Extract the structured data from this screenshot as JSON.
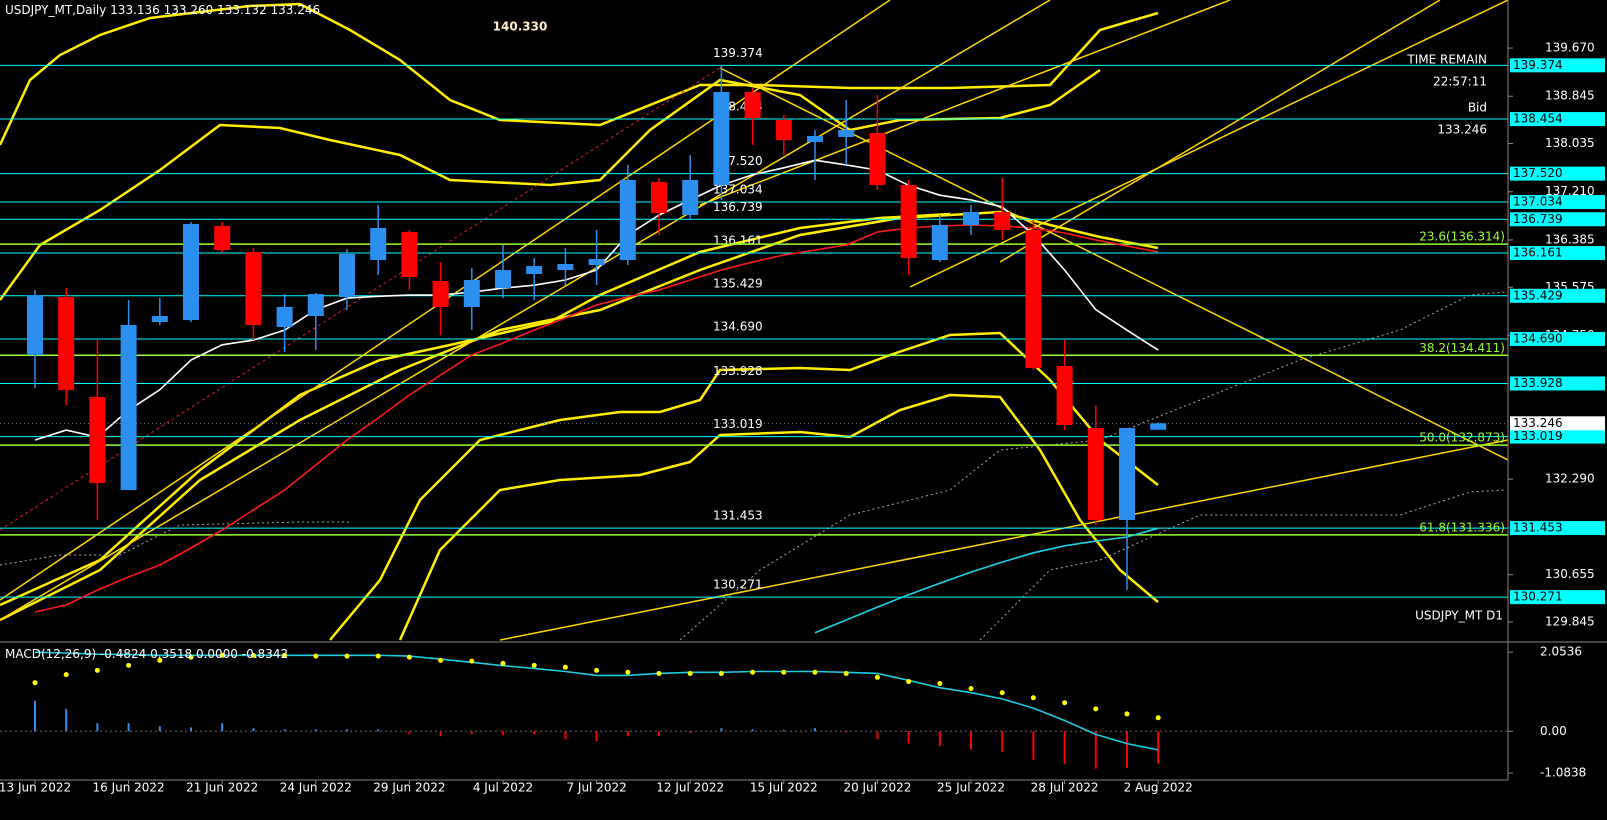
{
  "chart_data": {
    "type": "candlestick",
    "title": "USDJPY_MT,Daily",
    "readout": [
      133.136,
      {
        "value": 133.26,
        "label": "133.260"
      },
      133.132,
      133.246
    ],
    "symbol_label": "USDJPY_MT D1",
    "annotations": {
      "high_label": "140.330",
      "time_remain": "TIME REMAIN",
      "time": "22:57:11",
      "bid": "Bid"
    },
    "categories": [
      "13 Jun 2022",
      null,
      null,
      "16 Jun 2022",
      null,
      null,
      "21 Jun 2022",
      null,
      null,
      "24 Jun 2022",
      null,
      null,
      "29 Jun 2022",
      null,
      null,
      "4 Jul 2022",
      null,
      null,
      "7 Jul 2022",
      null,
      null,
      "12 Jul 2022",
      null,
      null,
      "15 Jul 2022",
      null,
      null,
      "20 Jul 2022",
      null,
      null,
      "25 Jul 2022",
      null,
      null,
      "28 Jul 2022",
      null,
      null,
      "2 Aug 2022"
    ],
    "open": [
      134.415,
      135.408,
      133.696,
      132.104,
      134.98,
      135.014,
      136.623,
      136.178,
      134.894,
      135.083,
      135.408,
      136.041,
      136.52,
      135.682,
      135.237,
      135.562,
      135.801,
      135.87,
      135.955,
      136.041,
      137.376,
      136.811,
      137.325,
      138.917,
      138.438,
      138.061,
      138.147,
      138.215,
      137.325,
      136.041,
      136.64,
      136.863,
      136.555,
      134.227,
      133.165,
      131.591,
      133.136
    ],
    "high": [
      135.528,
      135.562,
      134.672,
      135.357,
      135.391,
      136.692,
      136.692,
      136.247,
      135.459,
      135.476,
      136.229,
      136.983,
      136.555,
      136.007,
      135.904,
      136.298,
      136.075,
      136.247,
      136.555,
      137.667,
      137.445,
      137.838,
      139.374,
      138.985,
      138.523,
      138.266,
      138.78,
      138.865,
      137.411,
      136.811,
      136.983,
      137.445,
      136.726,
      134.672,
      133.559,
      133.165,
      133.26
    ],
    "low": [
      133.85,
      133.559,
      131.591,
      132.104,
      134.929,
      134.98,
      136.178,
      134.672,
      134.467,
      134.501,
      135.185,
      135.784,
      135.528,
      134.757,
      134.843,
      135.391,
      135.357,
      135.613,
      135.613,
      135.955,
      136.469,
      136.726,
      137.068,
      138.01,
      137.838,
      137.411,
      137.667,
      137.239,
      135.784,
      136.007,
      136.469,
      136.384,
      134.158,
      133.131,
      131.505,
      130.392,
      133.132
    ],
    "close": [
      135.442,
      133.816,
      132.224,
      134.929,
      135.083,
      136.657,
      136.212,
      134.929,
      135.237,
      135.459,
      136.144,
      136.589,
      135.75,
      135.237,
      135.699,
      135.87,
      135.938,
      135.973,
      136.058,
      137.411,
      136.846,
      137.411,
      138.917,
      138.472,
      138.095,
      138.164,
      138.266,
      137.325,
      136.075,
      136.64,
      136.863,
      136.555,
      134.192,
      133.217,
      131.591,
      133.165,
      133.246
    ],
    "up_color": "#2b8ff0",
    "down_color": "#ff0000",
    "ylim": [
      129.537,
      140.492
    ],
    "yticks": [
      {
        "value": 139.67,
        "label": "139.670"
      },
      {
        "value": 138.845,
        "label": "138.845"
      },
      {
        "value": 138.035,
        "label": "138.035"
      },
      {
        "value": 137.21,
        "label": "137.210"
      },
      {
        "value": 136.385,
        "label": "136.385"
      },
      {
        "value": 135.575,
        "label": "135.575"
      },
      {
        "value": 134.75,
        "label": "134.750"
      },
      {
        "value": 132.29,
        "label": "132.290"
      },
      {
        "value": 130.655,
        "label": "130.655"
      },
      {
        "value": 129.845,
        "label": "129.845"
      }
    ],
    "lines": [
      {
        "color": "#ff1a1a",
        "values": [
          130.016,
          130.136,
          130.392,
          130.615,
          130.82,
          131.111,
          131.42,
          131.762,
          132.104,
          132.532,
          132.96,
          133.337,
          133.73,
          134.073,
          134.415,
          134.62,
          134.843,
          135.048,
          135.271,
          135.408,
          135.528,
          135.699,
          135.87,
          136.007,
          136.127,
          136.212,
          136.298,
          136.52,
          136.589,
          136.623,
          136.64,
          136.623,
          136.589,
          136.503,
          136.384,
          136.281,
          136.178
        ]
      },
      {
        "color": "#ffffff",
        "values": [
          132.96,
          133.13,
          133.01,
          133.47,
          133.82,
          134.33,
          134.59,
          134.67,
          134.84,
          135.19,
          135.39,
          135.42,
          135.44,
          135.44,
          135.49,
          135.56,
          135.61,
          135.7,
          135.87,
          136.47,
          136.81,
          137.07,
          137.32,
          137.5,
          137.62,
          137.75,
          137.67,
          137.58,
          137.32,
          137.15,
          137.07,
          136.95,
          136.47,
          135.87,
          135.19,
          134.84,
          134.5
        ]
      },
      {
        "color": "#19d3e6",
        "values": [
          null,
          null,
          null,
          null,
          null,
          null,
          null,
          null,
          null,
          null,
          null,
          null,
          null,
          null,
          null,
          null,
          null,
          null,
          null,
          null,
          null,
          null,
          null,
          null,
          null,
          129.66,
          129.88,
          130.1,
          130.31,
          130.51,
          130.7,
          130.87,
          131.03,
          131.15,
          131.23,
          131.3,
          131.45
        ]
      }
    ],
    "level_color": "#00ffff",
    "levels": [
      {
        "value": 139.374,
        "label": "139.374"
      },
      {
        "value": 138.454,
        "label": "138.454"
      },
      {
        "value": 137.52,
        "label": "137.520"
      },
      {
        "value": 137.034,
        "label": "137.034"
      },
      {
        "value": 136.739,
        "label": "136.739"
      },
      {
        "value": 136.161,
        "label": "136.161"
      },
      {
        "value": 135.429,
        "label": "135.429"
      },
      {
        "value": 134.69,
        "label": "134.690"
      },
      {
        "value": 133.928,
        "label": "133.928"
      },
      {
        "value": 133.019,
        "label": "133.019"
      },
      {
        "value": 131.453,
        "label": "131.453"
      },
      {
        "value": 130.271,
        "label": "130.271"
      }
    ],
    "fib_color": "#9cff2e",
    "fib_levels": [
      {
        "value": 136.314,
        "label": "23.6(136.314)"
      },
      {
        "value": 134.411,
        "label": "38.2(134.411)"
      },
      {
        "value": 132.873,
        "label": "50.0(132.873)"
      },
      {
        "value": 131.336,
        "label": "61.8(131.336)"
      }
    ],
    "macd": {
      "type": "macd",
      "label": "MACD(12,26,9)",
      "zero_readout": {
        "value": 0,
        "label": "0.0000"
      },
      "ylim": [
        -1.264,
        2.238
      ],
      "yticks": [
        2.0536,
        {
          "value": 0,
          "label": "0.00"
        },
        -1.0838
      ],
      "histogram": {
        "values": [
          0.79,
          0.58,
          0.21,
          0.21,
          0.13,
          0.1,
          0.21,
          0.08,
          0.05,
          0.05,
          0.05,
          0.05,
          -0.08,
          -0.13,
          -0.08,
          -0.1,
          -0.08,
          -0.21,
          -0.26,
          -0.13,
          -0.13,
          -0.05,
          0.08,
          0.05,
          0.03,
          0.08,
          -0.03,
          -0.21,
          -0.32,
          -0.39,
          -0.47,
          -0.53,
          -0.74,
          -0.84,
          -0.97,
          -0.95,
          -0.8342
        ]
      },
      "line": {
        "color": "#1ecbe1",
        "values": [
          2.05,
          2.03,
          2.0,
          1.99,
          1.97,
          1.97,
          1.97,
          1.97,
          1.97,
          1.97,
          1.97,
          1.97,
          1.95,
          1.87,
          1.79,
          1.7,
          1.63,
          1.55,
          1.45,
          1.45,
          1.5,
          1.53,
          1.53,
          1.55,
          1.55,
          1.55,
          1.53,
          1.5,
          1.32,
          1.13,
          1.0,
          0.84,
          0.6,
          0.28,
          -0.08,
          -0.32,
          -0.4824
        ]
      },
      "dots": {
        "color": "#ffff00",
        "values": [
          1.26,
          1.47,
          1.58,
          1.71,
          1.84,
          1.92,
          1.97,
          1.97,
          1.97,
          1.95,
          1.95,
          1.95,
          1.92,
          1.84,
          1.82,
          1.76,
          1.71,
          1.66,
          1.58,
          1.53,
          1.5,
          1.5,
          1.5,
          1.53,
          1.53,
          1.53,
          1.5,
          1.4,
          1.29,
          1.24,
          1.11,
          1.0,
          0.87,
          0.74,
          0.58,
          0.45,
          0.3518
        ]
      }
    }
  }
}
